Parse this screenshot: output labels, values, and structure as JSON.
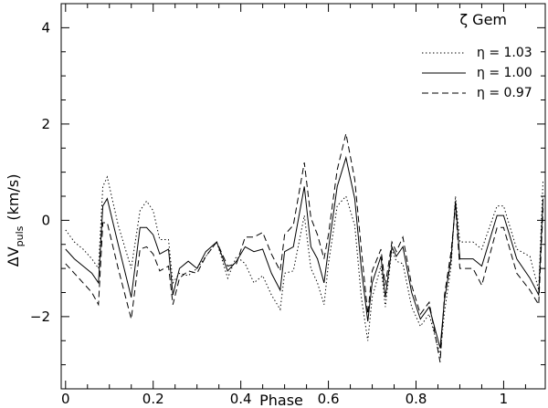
{
  "chart_data": {
    "type": "line",
    "title": "ζ Gem",
    "xlabel": "Phase",
    "ylabel_main": "ΔV",
    "ylabel_sub": "puls",
    "ylabel_unit": "(km/s)",
    "xlim": [
      -0.01,
      1.095
    ],
    "ylim": [
      -3.5,
      4.5
    ],
    "xticks": [
      0,
      0.2,
      0.4,
      0.6,
      0.8,
      1
    ],
    "xtick_labels": [
      "0",
      "0.2",
      "0.4",
      "0.6",
      "0.8",
      "1"
    ],
    "yticks": [
      -2,
      0,
      2,
      4
    ],
    "ytick_labels": [
      "−2",
      "0",
      "2",
      "4"
    ],
    "legend_position": "top-right",
    "series": [
      {
        "name": "η  =  1.03",
        "style": "dotted",
        "x": [
          0,
          0.02,
          0.04,
          0.06,
          0.075,
          0.085,
          0.095,
          0.12,
          0.15,
          0.17,
          0.185,
          0.2,
          0.215,
          0.235,
          0.245,
          0.26,
          0.28,
          0.3,
          0.32,
          0.345,
          0.37,
          0.39,
          0.41,
          0.43,
          0.45,
          0.47,
          0.49,
          0.5,
          0.52,
          0.545,
          0.56,
          0.575,
          0.59,
          0.6,
          0.62,
          0.64,
          0.66,
          0.675,
          0.69,
          0.7,
          0.72,
          0.73,
          0.745,
          0.755,
          0.77,
          0.79,
          0.81,
          0.83,
          0.855,
          0.865,
          0.88,
          0.89,
          0.9,
          0.93,
          0.95,
          0.985,
          1.0,
          1.03,
          1.06,
          1.08,
          1.09
        ],
        "y": [
          -0.2,
          -0.45,
          -0.6,
          -0.8,
          -1.0,
          0.7,
          0.9,
          -0.1,
          -1.0,
          0.2,
          0.4,
          0.2,
          -0.4,
          -0.4,
          -1.3,
          -1.1,
          -1.15,
          -1.0,
          -0.75,
          -0.45,
          -1.2,
          -0.75,
          -0.9,
          -1.3,
          -1.15,
          -1.55,
          -1.85,
          -1.1,
          -1.05,
          0.1,
          -1.0,
          -1.3,
          -1.75,
          -0.9,
          0.3,
          0.5,
          -0.1,
          -1.6,
          -2.5,
          -1.6,
          -0.95,
          -1.8,
          -0.6,
          -0.85,
          -0.9,
          -1.8,
          -2.2,
          -1.95,
          -2.8,
          -1.9,
          -0.95,
          0.5,
          -0.45,
          -0.45,
          -0.6,
          0.3,
          0.3,
          -0.6,
          -0.75,
          -1.45,
          0.85
        ],
        "stroke_dasharray": "1.4 2.6"
      },
      {
        "name": "η  =  1.00",
        "style": "solid",
        "x": [
          0,
          0.02,
          0.04,
          0.06,
          0.075,
          0.085,
          0.095,
          0.12,
          0.15,
          0.17,
          0.185,
          0.2,
          0.215,
          0.235,
          0.245,
          0.26,
          0.28,
          0.3,
          0.32,
          0.345,
          0.37,
          0.39,
          0.41,
          0.43,
          0.45,
          0.47,
          0.49,
          0.5,
          0.52,
          0.545,
          0.56,
          0.575,
          0.59,
          0.6,
          0.62,
          0.64,
          0.66,
          0.675,
          0.69,
          0.7,
          0.72,
          0.73,
          0.745,
          0.755,
          0.77,
          0.79,
          0.81,
          0.83,
          0.855,
          0.865,
          0.88,
          0.89,
          0.9,
          0.93,
          0.95,
          0.985,
          1.0,
          1.03,
          1.06,
          1.08,
          1.09
        ],
        "y": [
          -0.6,
          -0.8,
          -0.95,
          -1.1,
          -1.3,
          0.3,
          0.45,
          -0.5,
          -1.6,
          -0.15,
          -0.15,
          -0.3,
          -0.7,
          -0.6,
          -1.55,
          -1.0,
          -0.85,
          -1.0,
          -0.65,
          -0.45,
          -1.05,
          -0.85,
          -0.55,
          -0.65,
          -0.6,
          -1.1,
          -1.45,
          -0.65,
          -0.55,
          0.7,
          -0.55,
          -0.8,
          -1.3,
          -0.6,
          0.7,
          1.3,
          0.45,
          -1.0,
          -2.1,
          -1.3,
          -0.75,
          -1.6,
          -0.55,
          -0.75,
          -0.55,
          -1.5,
          -2.05,
          -1.8,
          -2.65,
          -1.65,
          -0.8,
          0.4,
          -0.8,
          -0.8,
          -0.95,
          0.1,
          0.1,
          -0.8,
          -1.2,
          -1.55,
          0.45
        ],
        "stroke_dasharray": ""
      },
      {
        "name": "η  =  0.97",
        "style": "dashed",
        "x": [
          0,
          0.02,
          0.04,
          0.06,
          0.075,
          0.085,
          0.095,
          0.12,
          0.15,
          0.17,
          0.185,
          0.2,
          0.215,
          0.235,
          0.245,
          0.26,
          0.28,
          0.3,
          0.32,
          0.345,
          0.37,
          0.39,
          0.41,
          0.43,
          0.45,
          0.47,
          0.49,
          0.5,
          0.52,
          0.545,
          0.56,
          0.575,
          0.59,
          0.6,
          0.62,
          0.64,
          0.66,
          0.675,
          0.69,
          0.7,
          0.72,
          0.73,
          0.745,
          0.755,
          0.77,
          0.79,
          0.81,
          0.83,
          0.855,
          0.865,
          0.88,
          0.89,
          0.9,
          0.93,
          0.95,
          0.985,
          1.0,
          1.03,
          1.06,
          1.08,
          1.09
        ],
        "y": [
          -0.9,
          -1.1,
          -1.3,
          -1.5,
          -1.75,
          -0.05,
          -0.05,
          -1.0,
          -2.05,
          -0.6,
          -0.55,
          -0.7,
          -1.05,
          -0.95,
          -1.75,
          -1.2,
          -1.05,
          -1.1,
          -0.75,
          -0.45,
          -0.95,
          -0.9,
          -0.35,
          -0.35,
          -0.25,
          -0.7,
          -1.05,
          -0.3,
          -0.1,
          1.2,
          0.05,
          -0.3,
          -0.8,
          -0.3,
          1.05,
          1.8,
          0.85,
          -0.6,
          -1.95,
          -1.05,
          -0.6,
          -1.35,
          -0.45,
          -0.65,
          -0.35,
          -1.35,
          -1.95,
          -1.7,
          -2.95,
          -1.55,
          -0.65,
          0.3,
          -1.0,
          -1.0,
          -1.35,
          -0.15,
          -0.15,
          -1.1,
          -1.45,
          -1.75,
          0.25
        ],
        "stroke_dasharray": "7 4"
      }
    ]
  }
}
